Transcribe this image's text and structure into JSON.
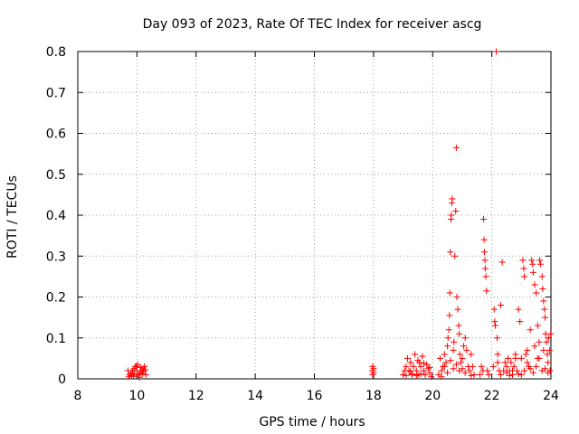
{
  "chart_data": {
    "type": "scatter",
    "title": "Day 093 of 2023, Rate Of TEC Index for receiver ascg",
    "xlabel": "GPS time / hours",
    "ylabel": "ROTI / TECUs",
    "xlim": [
      8,
      24
    ],
    "ylim": [
      0,
      0.8
    ],
    "xticks": [
      "8",
      "10",
      "12",
      "14",
      "16",
      "18",
      "20",
      "22",
      "24"
    ],
    "yticks": [
      "0",
      "0.1",
      "0.2",
      "0.3",
      "0.4",
      "0.5",
      "0.6",
      "0.7",
      "0.8"
    ],
    "grid": true,
    "marker": "+",
    "marker_color": "#ff0000",
    "grid_color": "#a0a0a0",
    "series": [
      {
        "points": [
          [
            9.7,
            0.02
          ],
          [
            9.75,
            0.01
          ],
          [
            9.8,
            0.015
          ],
          [
            9.85,
            0.02
          ],
          [
            9.9,
            0.025
          ],
          [
            9.95,
            0.03
          ],
          [
            10.0,
            0.02
          ],
          [
            10.05,
            0.01
          ],
          [
            10.1,
            0.015
          ],
          [
            10.15,
            0.02
          ],
          [
            10.2,
            0.025
          ],
          [
            10.25,
            0.03
          ],
          [
            10.3,
            0.01
          ],
          [
            9.72,
            0.005
          ],
          [
            9.82,
            0.008
          ],
          [
            9.92,
            0.012
          ],
          [
            10.02,
            0.035
          ],
          [
            10.12,
            0.028
          ],
          [
            10.22,
            0.018
          ],
          [
            10.28,
            0.022
          ],
          [
            9.88,
            0.006
          ],
          [
            10.08,
            0.004
          ],
          [
            9.98,
            0.03
          ],
          [
            10.18,
            0.012
          ],
          [
            17.97,
            0.02
          ],
          [
            17.97,
            0.01
          ],
          [
            17.97,
            0.03
          ],
          [
            18.0,
            0.015
          ],
          [
            18.0,
            0.025
          ],
          [
            19.0,
            0.01
          ],
          [
            19.05,
            0.02
          ],
          [
            19.1,
            0.03
          ],
          [
            19.15,
            0.05
          ],
          [
            19.2,
            0.02
          ],
          [
            19.25,
            0.04
          ],
          [
            19.3,
            0.01
          ],
          [
            19.35,
            0.03
          ],
          [
            19.4,
            0.06
          ],
          [
            19.45,
            0.02
          ],
          [
            19.5,
            0.01
          ],
          [
            19.55,
            0.04
          ],
          [
            19.6,
            0.03
          ],
          [
            19.65,
            0.055
          ],
          [
            19.7,
            0.02
          ],
          [
            19.75,
            0.01
          ],
          [
            19.8,
            0.035
          ],
          [
            19.85,
            0.025
          ],
          [
            19.9,
            0.015
          ],
          [
            19.95,
            0.005
          ],
          [
            19.1,
            0.008
          ],
          [
            19.3,
            0.012
          ],
          [
            19.5,
            0.045
          ],
          [
            19.7,
            0.038
          ],
          [
            19.9,
            0.028
          ],
          [
            19.45,
            0.008
          ],
          [
            19.25,
            0.018
          ],
          [
            19.6,
            0.012
          ],
          [
            20.2,
            0.01
          ],
          [
            20.25,
            0.05
          ],
          [
            20.3,
            0.02
          ],
          [
            20.35,
            0.03
          ],
          [
            20.4,
            0.06
          ],
          [
            20.45,
            0.04
          ],
          [
            20.5,
            0.08
          ],
          [
            20.52,
            0.1
          ],
          [
            20.55,
            0.12
          ],
          [
            20.57,
            0.155
          ],
          [
            20.58,
            0.21
          ],
          [
            20.6,
            0.31
          ],
          [
            20.62,
            0.39
          ],
          [
            20.63,
            0.4
          ],
          [
            20.65,
            0.43
          ],
          [
            20.66,
            0.44
          ],
          [
            20.7,
            0.07
          ],
          [
            20.72,
            0.09
          ],
          [
            20.75,
            0.3
          ],
          [
            20.78,
            0.41
          ],
          [
            20.8,
            0.565
          ],
          [
            20.82,
            0.2
          ],
          [
            20.85,
            0.17
          ],
          [
            20.88,
            0.13
          ],
          [
            20.9,
            0.11
          ],
          [
            20.92,
            0.06
          ],
          [
            20.95,
            0.04
          ],
          [
            21.0,
            0.05
          ],
          [
            21.05,
            0.08
          ],
          [
            21.1,
            0.1
          ],
          [
            21.15,
            0.07
          ],
          [
            21.2,
            0.03
          ],
          [
            21.25,
            0.02
          ],
          [
            21.3,
            0.06
          ],
          [
            21.35,
            0.03
          ],
          [
            21.4,
            0.01
          ],
          [
            20.3,
            0.005
          ],
          [
            20.5,
            0.015
          ],
          [
            20.7,
            0.025
          ],
          [
            20.9,
            0.02
          ],
          [
            21.1,
            0.015
          ],
          [
            21.3,
            0.008
          ],
          [
            20.4,
            0.03
          ],
          [
            20.6,
            0.045
          ],
          [
            20.8,
            0.035
          ],
          [
            21.0,
            0.025
          ],
          [
            21.7,
            0.02
          ],
          [
            21.72,
            0.39
          ],
          [
            21.74,
            0.34
          ],
          [
            21.75,
            0.31
          ],
          [
            21.77,
            0.29
          ],
          [
            21.78,
            0.27
          ],
          [
            21.8,
            0.25
          ],
          [
            21.82,
            0.215
          ],
          [
            21.6,
            0.01
          ],
          [
            21.65,
            0.03
          ],
          [
            21.85,
            0.02
          ],
          [
            21.9,
            0.01
          ],
          [
            22.05,
            0.03
          ],
          [
            22.08,
            0.17
          ],
          [
            22.1,
            0.14
          ],
          [
            22.12,
            0.13
          ],
          [
            22.15,
            0.8
          ],
          [
            22.18,
            0.1
          ],
          [
            22.2,
            0.06
          ],
          [
            22.25,
            0.02
          ],
          [
            22.3,
            0.18
          ],
          [
            22.35,
            0.285
          ],
          [
            22.4,
            0.02
          ],
          [
            22.45,
            0.04
          ],
          [
            22.5,
            0.03
          ],
          [
            22.55,
            0.05
          ],
          [
            22.6,
            0.02
          ],
          [
            22.65,
            0.04
          ],
          [
            22.7,
            0.01
          ],
          [
            22.75,
            0.03
          ],
          [
            22.8,
            0.05
          ],
          [
            22.85,
            0.02
          ],
          [
            22.9,
            0.17
          ],
          [
            22.95,
            0.14
          ],
          [
            23.0,
            0.05
          ],
          [
            23.05,
            0.29
          ],
          [
            23.08,
            0.27
          ],
          [
            23.1,
            0.25
          ],
          [
            23.15,
            0.06
          ],
          [
            23.2,
            0.04
          ],
          [
            23.25,
            0.03
          ],
          [
            23.3,
            0.12
          ],
          [
            23.35,
            0.29
          ],
          [
            23.38,
            0.28
          ],
          [
            23.4,
            0.26
          ],
          [
            23.45,
            0.23
          ],
          [
            23.5,
            0.21
          ],
          [
            23.55,
            0.13
          ],
          [
            23.6,
            0.09
          ],
          [
            23.62,
            0.29
          ],
          [
            23.65,
            0.28
          ],
          [
            23.7,
            0.25
          ],
          [
            23.72,
            0.22
          ],
          [
            23.75,
            0.19
          ],
          [
            23.78,
            0.17
          ],
          [
            23.8,
            0.15
          ],
          [
            23.82,
            0.11
          ],
          [
            23.85,
            0.09
          ],
          [
            23.88,
            0.06
          ],
          [
            23.9,
            0.04
          ],
          [
            23.92,
            0.1
          ],
          [
            23.95,
            0.07
          ],
          [
            23.97,
            0.02
          ],
          [
            23.99,
            0.11
          ],
          [
            22.3,
            0.01
          ],
          [
            22.5,
            0.015
          ],
          [
            22.7,
            0.02
          ],
          [
            22.9,
            0.012
          ],
          [
            23.1,
            0.02
          ],
          [
            23.3,
            0.025
          ],
          [
            23.5,
            0.03
          ],
          [
            23.7,
            0.02
          ],
          [
            23.9,
            0.015
          ],
          [
            22.6,
            0.008
          ],
          [
            23.0,
            0.01
          ],
          [
            23.4,
            0.015
          ],
          [
            23.8,
            0.025
          ],
          [
            22.2,
            0.04
          ],
          [
            23.6,
            0.05
          ],
          [
            23.2,
            0.07
          ],
          [
            22.8,
            0.06
          ],
          [
            23.45,
            0.08
          ],
          [
            23.75,
            0.07
          ],
          [
            23.55,
            0.05
          ]
        ]
      }
    ]
  }
}
